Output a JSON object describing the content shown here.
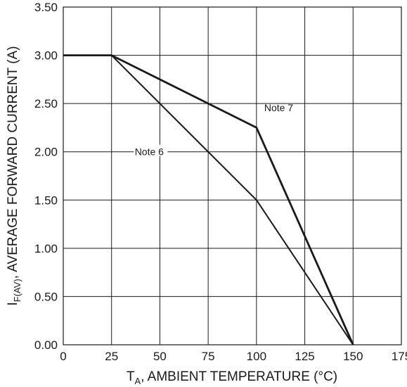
{
  "chart_data": {
    "type": "line",
    "xlabel": {
      "main": "T",
      "sub": "A",
      "rest": ", AMBIENT TEMPERATURE (°C)"
    },
    "ylabel": {
      "main": "I",
      "sub": "F(AV)",
      "rest": ", AVERAGE FORWARD CURRENT (A)"
    },
    "xlim": [
      0,
      175
    ],
    "ylim": [
      0,
      3.5
    ],
    "x_ticks": [
      0,
      25,
      50,
      75,
      100,
      125,
      150,
      175
    ],
    "x_tick_labels": [
      "0",
      "25",
      "50",
      "75",
      "100",
      "125",
      "150",
      "175"
    ],
    "y_ticks": [
      0,
      0.5,
      1,
      1.5,
      2,
      2.5,
      3,
      3.5
    ],
    "y_tick_labels": [
      "0.00",
      "0.50",
      "1.00",
      "1.50",
      "2.00",
      "2.50",
      "3.00",
      "3.50"
    ],
    "grid": true,
    "series": [
      {
        "name": "Note 7",
        "x": [
          0,
          25,
          100,
          150
        ],
        "y": [
          3.0,
          3.0,
          2.25,
          0.0
        ]
      },
      {
        "name": "Note 6",
        "x": [
          0,
          25,
          100,
          150
        ],
        "y": [
          3.0,
          3.0,
          1.5,
          0.0
        ]
      }
    ]
  }
}
